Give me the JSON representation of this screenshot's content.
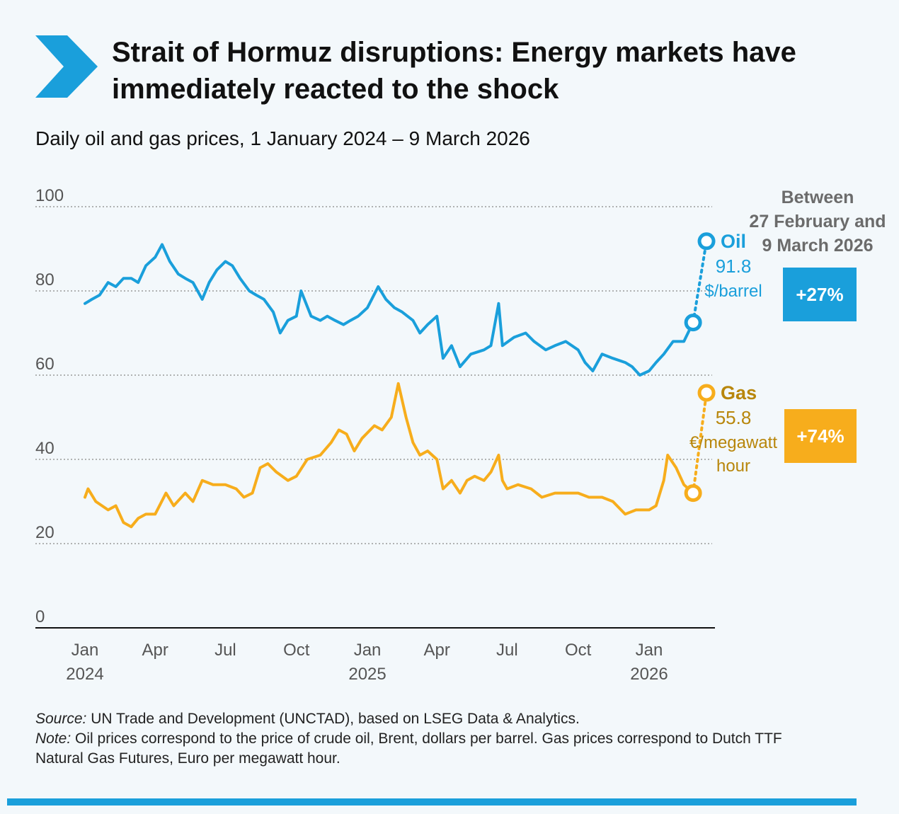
{
  "header": {
    "title": "Strait of Hormuz disruptions: Energy markets have immediately reacted to the shock",
    "subtitle": "Daily oil and gas prices, 1 January 2024 – 9 March 2026"
  },
  "colors": {
    "oil": "#1a9fdb",
    "gas": "#f7ad1c",
    "gas_text": "#b8860b",
    "grid": "#9a9a9a",
    "accent_bar": "#1a9fdb"
  },
  "annotation": {
    "between_lines": [
      "Between",
      "27 February and",
      "9 March 2026"
    ],
    "oil_change": "+27%",
    "gas_change": "+74%"
  },
  "chart_data": {
    "type": "line",
    "title": "Daily oil and gas prices, 1 January 2024 – 9 March 2026",
    "ylim": [
      0,
      100
    ],
    "y_ticks": [
      "0",
      "20",
      "40",
      "60",
      "80",
      "100"
    ],
    "y_tick_values": [
      0,
      20,
      40,
      60,
      80,
      100
    ],
    "x_ticks": [
      {
        "date": "2024-01",
        "label": "Jan",
        "year": "2024"
      },
      {
        "date": "2024-04",
        "label": "Apr",
        "year": ""
      },
      {
        "date": "2024-07",
        "label": "Jul",
        "year": ""
      },
      {
        "date": "2024-10",
        "label": "Oct",
        "year": ""
      },
      {
        "date": "2025-01",
        "label": "Jan",
        "year": "2025"
      },
      {
        "date": "2025-04",
        "label": "Apr",
        "year": ""
      },
      {
        "date": "2025-07",
        "label": "Jul",
        "year": ""
      },
      {
        "date": "2025-10",
        "label": "Oct",
        "year": ""
      },
      {
        "date": "2026-01",
        "label": "Jan",
        "year": "2026"
      }
    ],
    "grid": true,
    "series": [
      {
        "name": "Oil",
        "value_label": "91.8",
        "unit_lines": [
          "$/barrel"
        ],
        "start": {
          "date": "2026-02-27",
          "value": 72.5
        },
        "end": {
          "date": "2026-03-09",
          "value": 91.8
        },
        "points": [
          [
            "2024-01-01",
            77
          ],
          [
            "2024-01-10",
            78
          ],
          [
            "2024-01-20",
            79
          ],
          [
            "2024-01-31",
            82
          ],
          [
            "2024-02-10",
            81
          ],
          [
            "2024-02-20",
            83
          ],
          [
            "2024-03-01",
            83
          ],
          [
            "2024-03-10",
            82
          ],
          [
            "2024-03-20",
            86
          ],
          [
            "2024-04-01",
            88
          ],
          [
            "2024-04-10",
            91
          ],
          [
            "2024-04-20",
            87
          ],
          [
            "2024-05-01",
            84
          ],
          [
            "2024-05-10",
            83
          ],
          [
            "2024-05-20",
            82
          ],
          [
            "2024-06-01",
            78
          ],
          [
            "2024-06-10",
            82
          ],
          [
            "2024-06-20",
            85
          ],
          [
            "2024-07-01",
            87
          ],
          [
            "2024-07-10",
            86
          ],
          [
            "2024-07-20",
            83
          ],
          [
            "2024-08-01",
            80
          ],
          [
            "2024-08-10",
            79
          ],
          [
            "2024-08-20",
            78
          ],
          [
            "2024-09-01",
            75
          ],
          [
            "2024-09-10",
            70
          ],
          [
            "2024-09-20",
            73
          ],
          [
            "2024-10-01",
            74
          ],
          [
            "2024-10-07",
            80
          ],
          [
            "2024-10-20",
            74
          ],
          [
            "2024-11-01",
            73
          ],
          [
            "2024-11-10",
            74
          ],
          [
            "2024-11-20",
            73
          ],
          [
            "2024-12-01",
            72
          ],
          [
            "2024-12-10",
            73
          ],
          [
            "2024-12-20",
            74
          ],
          [
            "2025-01-01",
            76
          ],
          [
            "2025-01-15",
            81
          ],
          [
            "2025-01-25",
            78
          ],
          [
            "2025-02-05",
            76
          ],
          [
            "2025-02-15",
            75
          ],
          [
            "2025-03-01",
            73
          ],
          [
            "2025-03-10",
            70
          ],
          [
            "2025-03-20",
            72
          ],
          [
            "2025-04-01",
            74
          ],
          [
            "2025-04-09",
            64
          ],
          [
            "2025-04-20",
            67
          ],
          [
            "2025-05-01",
            62
          ],
          [
            "2025-05-15",
            65
          ],
          [
            "2025-06-01",
            66
          ],
          [
            "2025-06-10",
            67
          ],
          [
            "2025-06-20",
            77
          ],
          [
            "2025-06-25",
            67
          ],
          [
            "2025-07-10",
            69
          ],
          [
            "2025-07-25",
            70
          ],
          [
            "2025-08-05",
            68
          ],
          [
            "2025-08-20",
            66
          ],
          [
            "2025-09-01",
            67
          ],
          [
            "2025-09-15",
            68
          ],
          [
            "2025-10-01",
            66
          ],
          [
            "2025-10-10",
            63
          ],
          [
            "2025-10-20",
            61
          ],
          [
            "2025-11-01",
            65
          ],
          [
            "2025-11-15",
            64
          ],
          [
            "2025-12-01",
            63
          ],
          [
            "2025-12-10",
            62
          ],
          [
            "2025-12-20",
            60
          ],
          [
            "2026-01-01",
            61
          ],
          [
            "2026-01-10",
            63
          ],
          [
            "2026-01-20",
            65
          ],
          [
            "2026-02-01",
            68
          ],
          [
            "2026-02-15",
            68
          ],
          [
            "2026-02-27",
            72.5
          ]
        ]
      },
      {
        "name": "Gas",
        "value_label": "55.8",
        "unit_lines": [
          "€/megawatt",
          "hour"
        ],
        "start": {
          "date": "2026-02-27",
          "value": 32
        },
        "end": {
          "date": "2026-03-09",
          "value": 55.8
        },
        "points": [
          [
            "2024-01-01",
            31
          ],
          [
            "2024-01-05",
            33
          ],
          [
            "2024-01-15",
            30
          ],
          [
            "2024-01-31",
            28
          ],
          [
            "2024-02-10",
            29
          ],
          [
            "2024-02-20",
            25
          ],
          [
            "2024-03-01",
            24
          ],
          [
            "2024-03-10",
            26
          ],
          [
            "2024-03-20",
            27
          ],
          [
            "2024-04-01",
            27
          ],
          [
            "2024-04-15",
            32
          ],
          [
            "2024-04-25",
            29
          ],
          [
            "2024-05-10",
            32
          ],
          [
            "2024-05-20",
            30
          ],
          [
            "2024-06-01",
            35
          ],
          [
            "2024-06-15",
            34
          ],
          [
            "2024-07-01",
            34
          ],
          [
            "2024-07-15",
            33
          ],
          [
            "2024-07-25",
            31
          ],
          [
            "2024-08-05",
            32
          ],
          [
            "2024-08-15",
            38
          ],
          [
            "2024-08-25",
            39
          ],
          [
            "2024-09-05",
            37
          ],
          [
            "2024-09-20",
            35
          ],
          [
            "2024-10-01",
            36
          ],
          [
            "2024-10-15",
            40
          ],
          [
            "2024-11-01",
            41
          ],
          [
            "2024-11-15",
            44
          ],
          [
            "2024-11-25",
            47
          ],
          [
            "2024-12-05",
            46
          ],
          [
            "2024-12-15",
            42
          ],
          [
            "2024-12-25",
            45
          ],
          [
            "2025-01-10",
            48
          ],
          [
            "2025-01-20",
            47
          ],
          [
            "2025-02-01",
            50
          ],
          [
            "2025-02-10",
            58
          ],
          [
            "2025-02-20",
            50
          ],
          [
            "2025-03-01",
            44
          ],
          [
            "2025-03-10",
            41
          ],
          [
            "2025-03-20",
            42
          ],
          [
            "2025-04-01",
            40
          ],
          [
            "2025-04-09",
            33
          ],
          [
            "2025-04-20",
            35
          ],
          [
            "2025-05-01",
            32
          ],
          [
            "2025-05-10",
            35
          ],
          [
            "2025-05-20",
            36
          ],
          [
            "2025-06-01",
            35
          ],
          [
            "2025-06-10",
            37
          ],
          [
            "2025-06-20",
            41
          ],
          [
            "2025-06-25",
            35
          ],
          [
            "2025-07-01",
            33
          ],
          [
            "2025-07-15",
            34
          ],
          [
            "2025-08-01",
            33
          ],
          [
            "2025-08-15",
            31
          ],
          [
            "2025-09-01",
            32
          ],
          [
            "2025-09-15",
            32
          ],
          [
            "2025-10-01",
            32
          ],
          [
            "2025-10-15",
            31
          ],
          [
            "2025-11-01",
            31
          ],
          [
            "2025-11-15",
            30
          ],
          [
            "2025-12-01",
            27
          ],
          [
            "2025-12-15",
            28
          ],
          [
            "2026-01-01",
            28
          ],
          [
            "2026-01-10",
            29
          ],
          [
            "2026-01-20",
            35
          ],
          [
            "2026-01-25",
            41
          ],
          [
            "2026-02-05",
            38
          ],
          [
            "2026-02-15",
            34
          ],
          [
            "2026-02-27",
            32
          ]
        ]
      }
    ]
  },
  "footnotes": {
    "source_label": "Source:",
    "source_text": "UN Trade and Development (UNCTAD), based on LSEG Data & Analytics.",
    "note_label": "Note:",
    "note_text": "Oil prices correspond to the price of crude oil, Brent, dollars per barrel. Gas prices correspond to Dutch TTF Natural Gas Futures, Euro per megawatt hour."
  }
}
